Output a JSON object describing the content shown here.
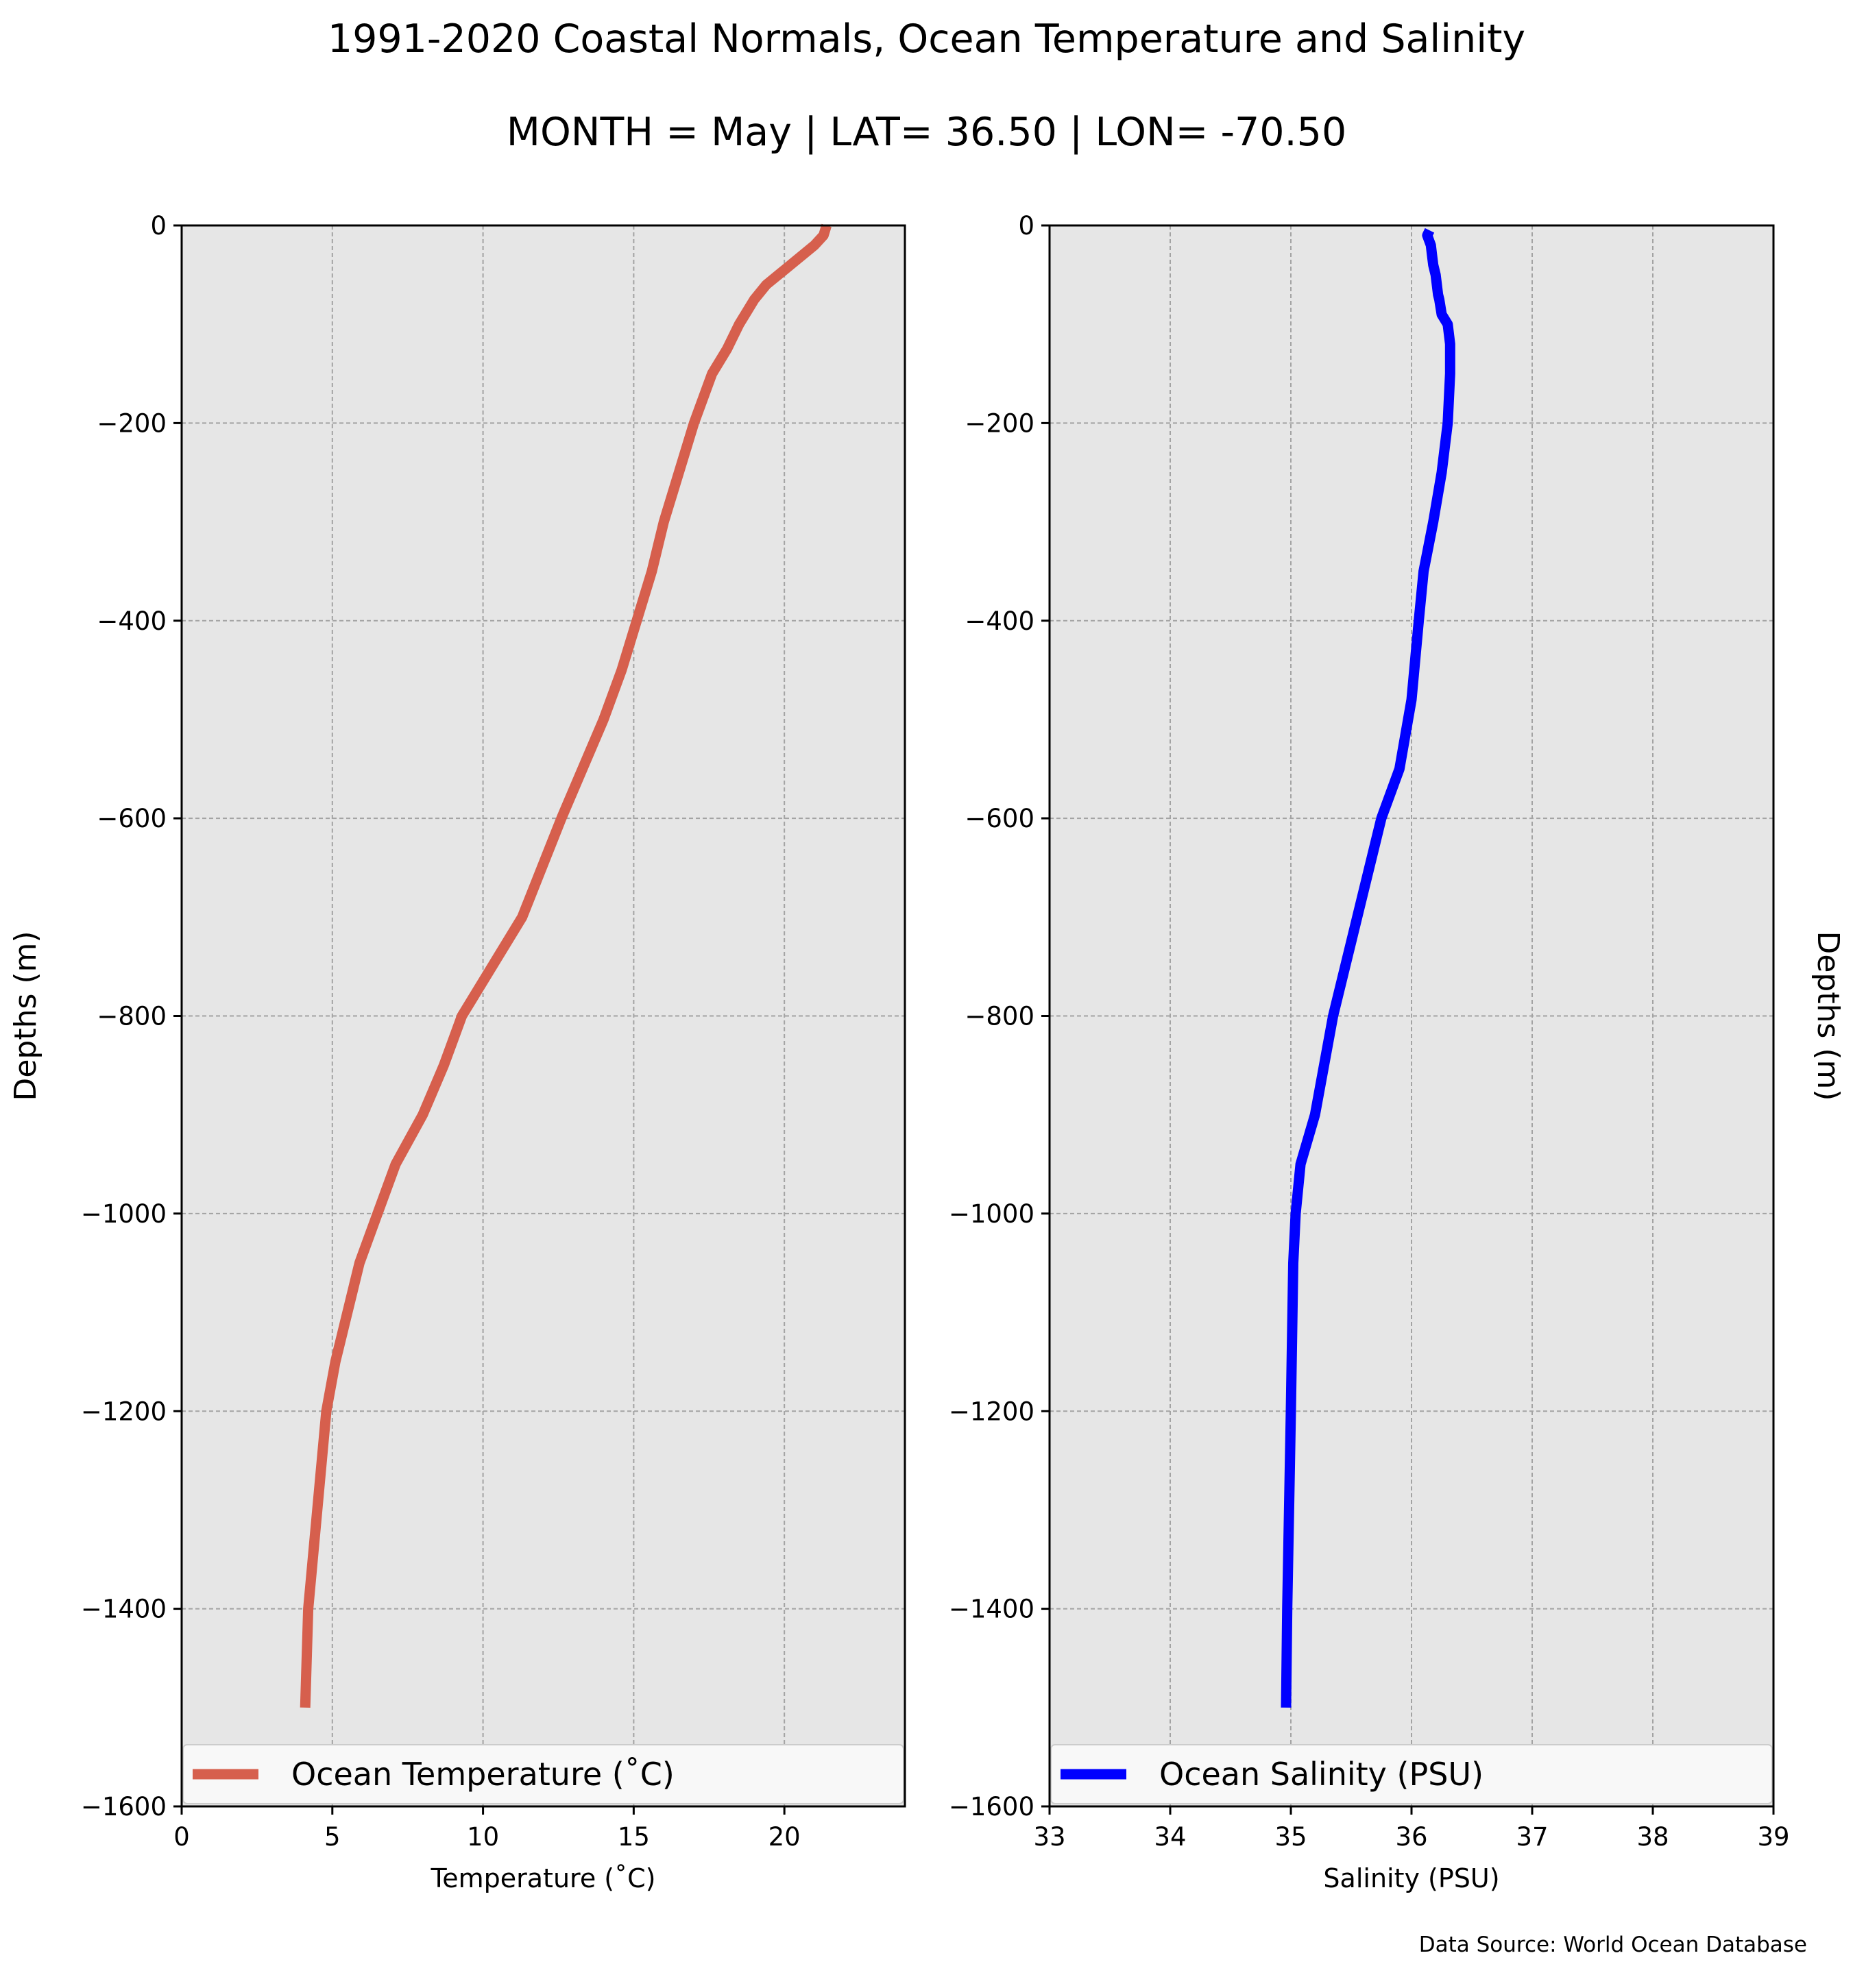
{
  "figure": {
    "title": "1991-2020 Coastal Normals, Ocean Temperature and Salinity",
    "subtitle": "MONTH = May | LAT= 36.50 | LON= -70.50",
    "source": "Data Source: World Ocean Database"
  },
  "chart_data": [
    {
      "type": "line",
      "xlabel": "Temperature (˚C)",
      "ylabel": "Depths (m)",
      "xlim": [
        0,
        24
      ],
      "ylim": [
        -1600,
        0
      ],
      "xticks": [
        0,
        5,
        10,
        15,
        20
      ],
      "xtick_labels": [
        "0",
        "5",
        "10",
        "15",
        "20"
      ],
      "yticks": [
        0,
        -200,
        -400,
        -600,
        -800,
        -1000,
        -1200,
        -1400,
        -1600
      ],
      "ytick_labels": [
        "0",
        "−200",
        "−400",
        "−600",
        "−800",
        "−1000",
        "−1200",
        "−1400",
        "−1600"
      ],
      "grid": true,
      "legend_position": "lower center",
      "series": [
        {
          "name": "Ocean Temperature (˚C)",
          "color": "#d65f4d",
          "x": [
            21.4,
            21.3,
            21.0,
            20.6,
            20.2,
            19.8,
            19.4,
            19.0,
            18.7,
            18.5,
            18.1,
            17.6,
            17.0,
            16.5,
            16.0,
            15.6,
            15.1,
            14.6,
            14.0,
            12.6,
            11.3,
            9.3,
            8.7,
            8.0,
            7.1,
            6.5,
            5.9,
            5.1,
            4.8,
            4.5,
            4.2,
            4.1
          ],
          "y": [
            0,
            -10,
            -20,
            -30,
            -40,
            -50,
            -60,
            -75,
            -90,
            -100,
            -125,
            -150,
            -200,
            -250,
            -300,
            -350,
            -400,
            -450,
            -500,
            -600,
            -700,
            -800,
            -850,
            -900,
            -950,
            -1000,
            -1050,
            -1150,
            -1200,
            -1300,
            -1400,
            -1500
          ]
        }
      ]
    },
    {
      "type": "line",
      "xlabel": "Salinity (PSU)",
      "ylabel": "Depths (m)",
      "xlim": [
        33,
        39
      ],
      "ylim": [
        -1600,
        0
      ],
      "xticks": [
        33,
        34,
        35,
        36,
        37,
        38,
        39
      ],
      "xtick_labels": [
        "33",
        "34",
        "35",
        "36",
        "37",
        "38",
        "39"
      ],
      "yticks": [
        0,
        -200,
        -400,
        -600,
        -800,
        -1000,
        -1200,
        -1400,
        -1600
      ],
      "ytick_labels": [
        "0",
        "−200",
        "−400",
        "−600",
        "−800",
        "−1000",
        "−1200",
        "−1400",
        "−1600"
      ],
      "grid": true,
      "legend_position": "lower center",
      "series": [
        {
          "name": "Ocean Salinity (PSU)",
          "color": "#0000ff",
          "x": [
            36.15,
            36.13,
            36.16,
            36.17,
            36.18,
            36.2,
            36.22,
            36.23,
            36.25,
            36.3,
            36.32,
            36.32,
            36.3,
            36.25,
            36.18,
            36.1,
            36.06,
            36.0,
            35.9,
            35.75,
            35.55,
            35.35,
            35.2,
            35.08,
            35.04,
            35.02,
            35.0,
            34.97,
            34.96
          ],
          "y": [
            -5,
            -10,
            -20,
            -30,
            -40,
            -50,
            -70,
            -75,
            -90,
            -100,
            -120,
            -150,
            -200,
            -250,
            -300,
            -350,
            -400,
            -480,
            -550,
            -600,
            -700,
            -800,
            -900,
            -950,
            -1000,
            -1050,
            -1200,
            -1400,
            -1500
          ]
        }
      ]
    }
  ]
}
